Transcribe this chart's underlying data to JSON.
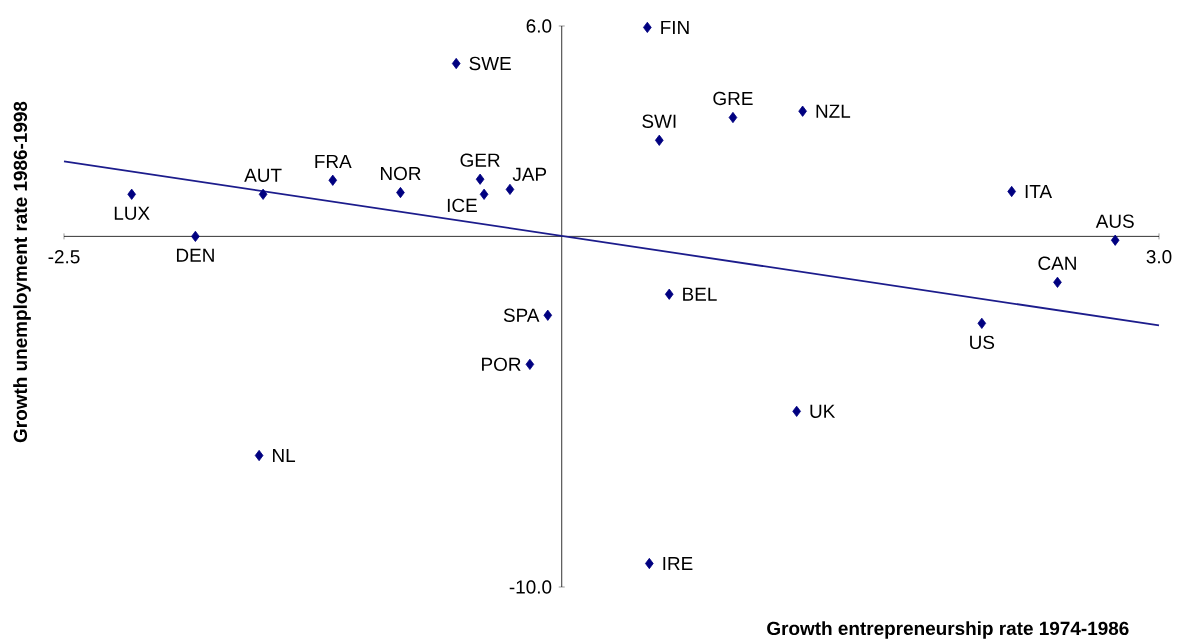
{
  "chart_data": {
    "type": "scatter",
    "xlabel": "Growth entrepreneurship rate 1974-1986",
    "ylabel": "Growth unemployment rate 1986-1998",
    "xlim": [
      -2.5,
      3.0
    ],
    "ylim": [
      -10,
      6
    ],
    "xticks": [
      -2.5,
      {
        "value": 3,
        "label": "3.0"
      }
    ],
    "yticks": [
      {
        "value": -10,
        "label": "-10.0"
      },
      {
        "value": 6,
        "label": "6.0"
      }
    ],
    "grid": false,
    "series": [
      {
        "marker": "diamond",
        "color": "#000080",
        "x": [
          -2.16,
          -1.84,
          -1.5,
          -1.15,
          -0.81,
          -0.53,
          -0.41,
          -0.39,
          -0.26,
          0.43,
          0.49,
          0.86,
          1.21,
          2.26,
          2.78,
          2.49,
          2.11,
          0.54,
          -0.07,
          -0.16,
          1.18,
          -1.52,
          0.44
        ],
        "values": [
          1.2,
          0.0,
          1.2,
          1.6,
          1.25,
          4.93,
          1.63,
          1.2,
          1.34,
          5.96,
          2.74,
          3.39,
          3.57,
          1.28,
          -0.11,
          -1.31,
          -2.48,
          -1.65,
          -2.25,
          -3.65,
          -4.99,
          -6.25,
          -9.33
        ]
      },
      {
        "type": "line",
        "marker": "none",
        "color": "#1c1c8c",
        "x": [
          -2.5,
          3.0
        ],
        "values": [
          2.14,
          -2.54
        ]
      }
    ],
    "annotations": [
      {
        "text": "LUX",
        "x": -2.16,
        "y": 1.2
      },
      {
        "text": "DEN",
        "x": -1.84,
        "y": 0.0
      },
      {
        "text": "AUT",
        "x": -1.5,
        "y": 1.2
      },
      {
        "text": "FRA",
        "x": -1.15,
        "y": 1.6
      },
      {
        "text": "NOR",
        "x": -0.81,
        "y": 1.25
      },
      {
        "text": "SWE",
        "x": -0.53,
        "y": 4.93
      },
      {
        "text": "GER",
        "x": -0.41,
        "y": 1.63
      },
      {
        "text": "ICE",
        "x": -0.39,
        "y": 1.2
      },
      {
        "text": "JAP",
        "x": -0.26,
        "y": 1.34
      },
      {
        "text": "FIN",
        "x": 0.43,
        "y": 5.96
      },
      {
        "text": "SWI",
        "x": 0.49,
        "y": 2.74
      },
      {
        "text": "GRE",
        "x": 0.86,
        "y": 3.39
      },
      {
        "text": "NZL",
        "x": 1.21,
        "y": 3.57
      },
      {
        "text": "ITA",
        "x": 2.26,
        "y": 1.28
      },
      {
        "text": "AUS",
        "x": 2.78,
        "y": -0.11
      },
      {
        "text": "CAN",
        "x": 2.49,
        "y": -1.31
      },
      {
        "text": "US",
        "x": 2.11,
        "y": -2.48
      },
      {
        "text": "BEL",
        "x": 0.54,
        "y": -1.65
      },
      {
        "text": "SPA",
        "x": -0.07,
        "y": -2.25
      },
      {
        "text": "POR",
        "x": -0.16,
        "y": -3.65
      },
      {
        "text": "UK",
        "x": 1.18,
        "y": -4.99
      },
      {
        "text": "NL",
        "x": -1.52,
        "y": -6.25
      },
      {
        "text": "IRE",
        "x": 0.44,
        "y": -9.33
      }
    ]
  }
}
